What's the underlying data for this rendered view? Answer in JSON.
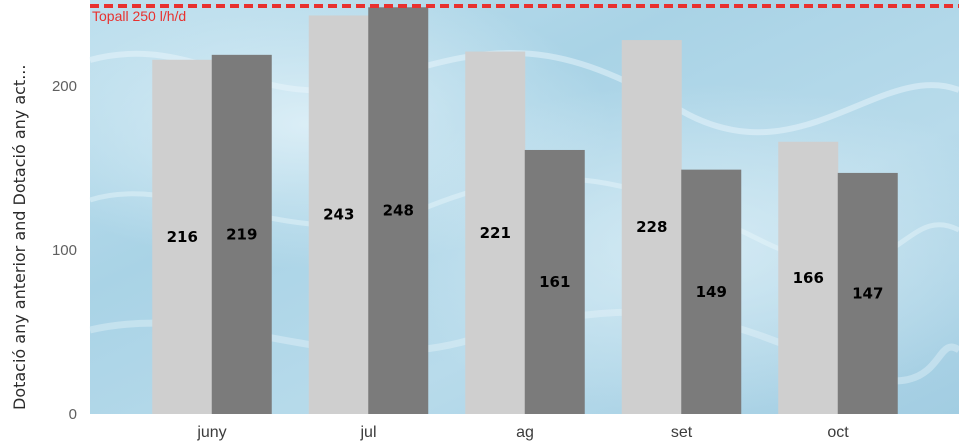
{
  "chart_data": {
    "type": "bar",
    "categories": [
      "juny",
      "jul",
      "ag",
      "set",
      "oct"
    ],
    "series": [
      {
        "values": [
          216,
          243,
          221,
          228,
          166
        ],
        "color": "#cfcfcf"
      },
      {
        "values": [
          219,
          248,
          161,
          149,
          147
        ],
        "color": "#7b7b7b"
      }
    ],
    "ylabel": "Dotació any anterior and Dotació any act...",
    "yticks": [
      0,
      100,
      200
    ],
    "ylim": [
      0,
      250
    ],
    "reference_line": {
      "value": 250,
      "label": "Topall 250 l/h/d",
      "color": "#e8312f",
      "style": "dashed"
    },
    "data_labels": true,
    "legend": "none",
    "background": "water texture (light blue)"
  }
}
